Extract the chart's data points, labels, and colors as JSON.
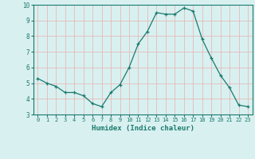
{
  "x": [
    0,
    1,
    2,
    3,
    4,
    5,
    6,
    7,
    8,
    9,
    10,
    11,
    12,
    13,
    14,
    15,
    16,
    17,
    18,
    19,
    20,
    21,
    22,
    23
  ],
  "y": [
    5.3,
    5.0,
    4.8,
    4.4,
    4.4,
    4.2,
    3.7,
    3.5,
    4.4,
    4.9,
    6.0,
    7.5,
    8.3,
    9.5,
    9.4,
    9.4,
    9.8,
    9.6,
    7.8,
    6.6,
    5.5,
    4.7,
    3.6,
    3.5
  ],
  "line_color": "#1a7a6e",
  "marker": "+",
  "marker_size": 3,
  "bg_color": "#d9f0f0",
  "grid_color": "#e8b0b0",
  "xlabel": "Humidex (Indice chaleur)",
  "ylim": [
    3,
    10
  ],
  "xlim": [
    -0.5,
    23.5
  ],
  "yticks": [
    3,
    4,
    5,
    6,
    7,
    8,
    9,
    10
  ],
  "xticks": [
    0,
    1,
    2,
    3,
    4,
    5,
    6,
    7,
    8,
    9,
    10,
    11,
    12,
    13,
    14,
    15,
    16,
    17,
    18,
    19,
    20,
    21,
    22,
    23
  ]
}
